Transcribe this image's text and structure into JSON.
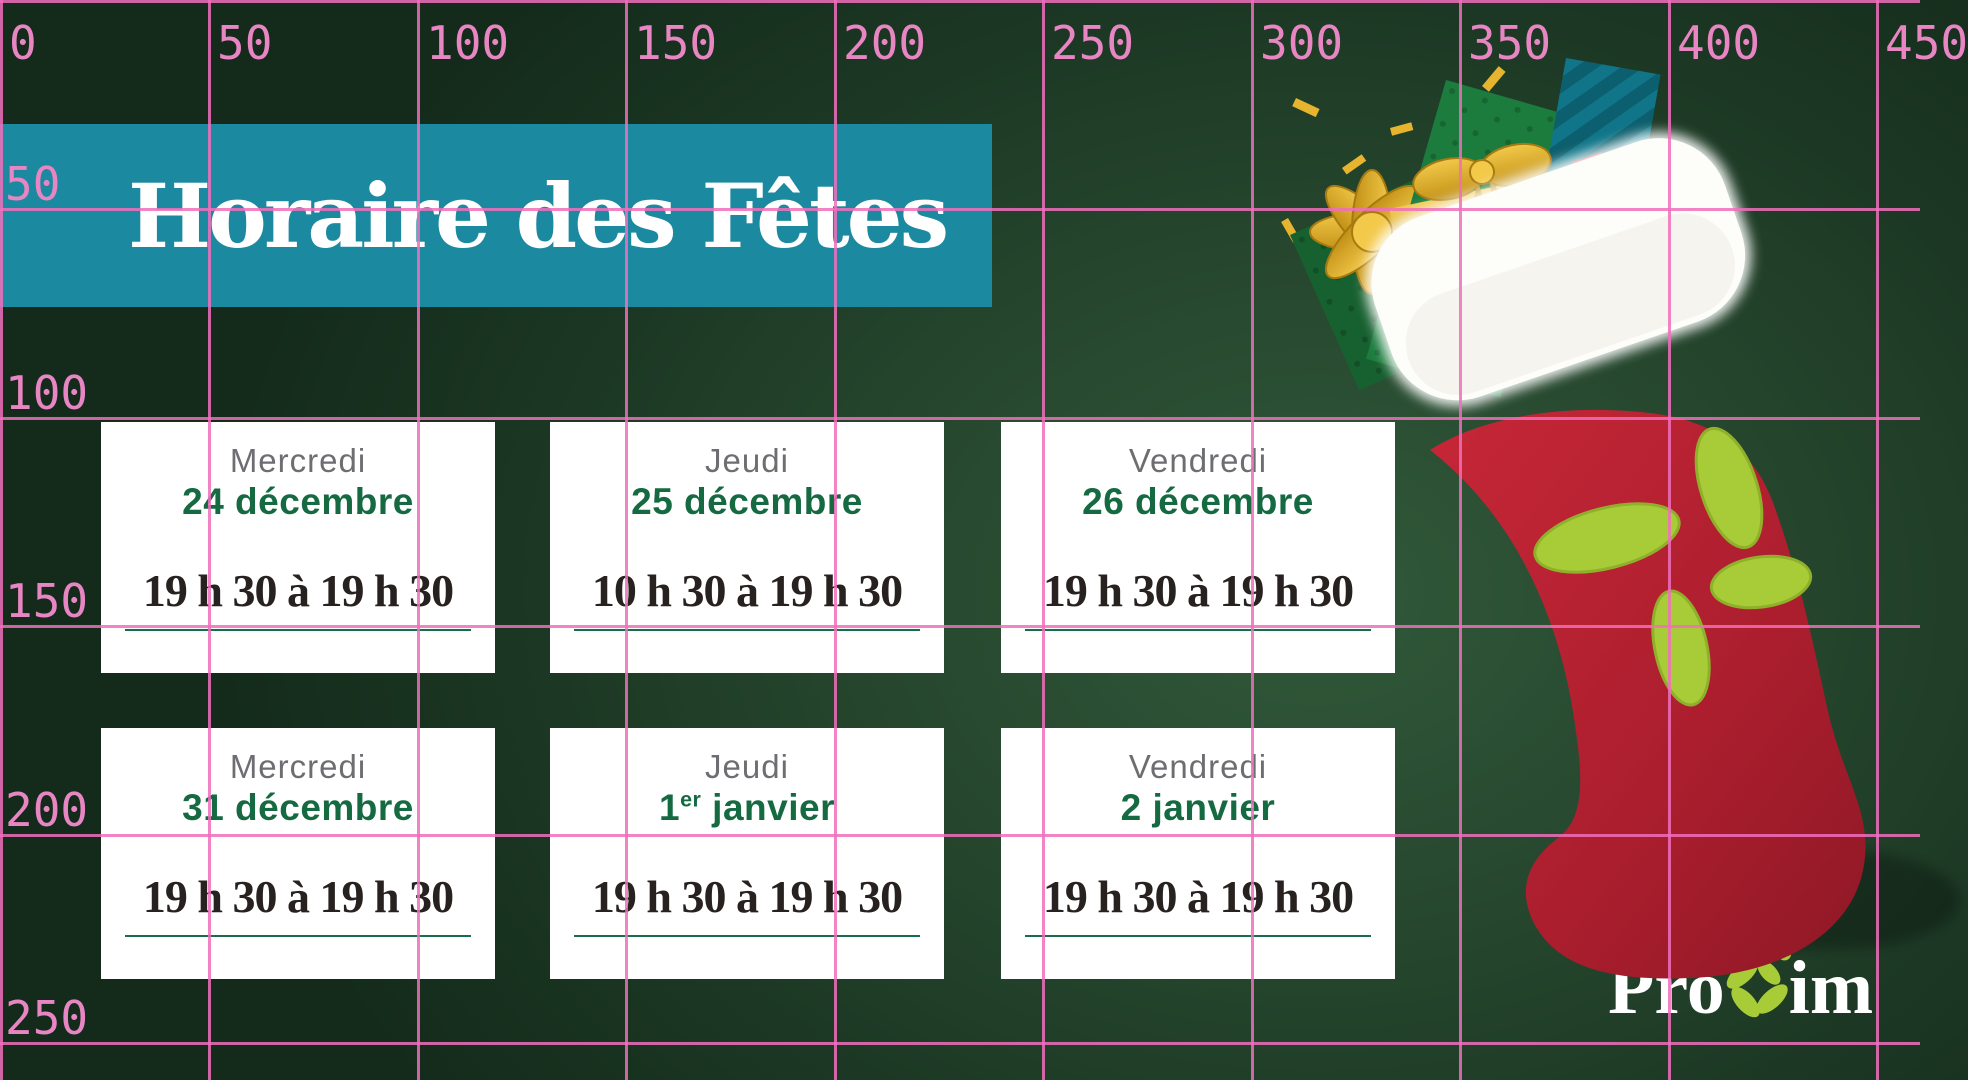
{
  "title": {
    "text": "Horaire des Fêtes"
  },
  "cards": [
    {
      "day": "Mercredi",
      "date_main": "24 décembre",
      "date_sup": "",
      "date_rest": "",
      "hours": "19 h 30 à 19 h 30"
    },
    {
      "day": "Jeudi",
      "date_main": "25 décembre",
      "date_sup": "",
      "date_rest": "",
      "hours": "10 h 30 à 19 h 30"
    },
    {
      "day": "Vendredi",
      "date_main": "26 décembre",
      "date_sup": "",
      "date_rest": "",
      "hours": "19 h 30 à 19 h 30"
    },
    {
      "day": "Mercredi",
      "date_main": "31 décembre",
      "date_sup": "",
      "date_rest": "",
      "hours": "19 h 30 à 19 h 30"
    },
    {
      "day": "Jeudi",
      "date_main": "1",
      "date_sup": "er",
      "date_rest": " janvier",
      "hours": "19 h 30 à 19 h 30"
    },
    {
      "day": "Vendredi",
      "date_main": "2 janvier",
      "date_sup": "",
      "date_rest": "",
      "hours": "19 h 30 à 19 h 30"
    }
  ],
  "logo": {
    "pro": "Pro",
    "im": "im"
  },
  "grid": {
    "top_labels": [
      "0",
      "50",
      "100",
      "150",
      "200",
      "250",
      "300",
      "350",
      "400",
      "450"
    ],
    "left_labels": [
      "50",
      "100",
      "150",
      "200",
      "250"
    ]
  },
  "colors": {
    "background_green": "#1c3824",
    "banner_teal": "#1b8aa0",
    "card_white": "#ffffff",
    "day_gray": "#6d6e71",
    "date_green": "#156a42",
    "hours_black": "#27211f",
    "grid_pink": "#f06fbc",
    "stocking_red": "#b72433",
    "cuff_white": "#fdfdfa",
    "lime_green": "#a7cc38",
    "gold": "#d9a622",
    "gift_teal": "#0c5f6e",
    "gift_green": "#1a7a3c"
  },
  "icons": {
    "stocking": "christmas-stocking",
    "gifts": "gift-boxes",
    "bow": "gold-bow",
    "flower": "proxim-flower"
  }
}
